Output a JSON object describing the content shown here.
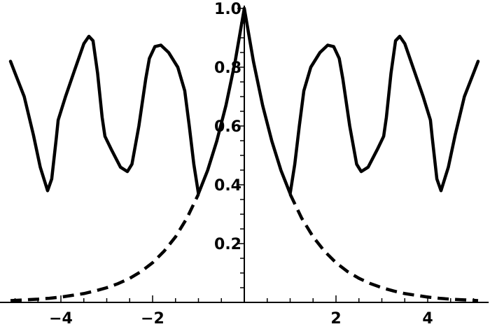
{
  "chart_data": {
    "type": "line",
    "title": "",
    "xlabel": "",
    "ylabel": "",
    "xlim": [
      -5.33,
      5.33
    ],
    "ylim": [
      0,
      1.0
    ],
    "grid": false,
    "x_ticks": [
      {
        "value": -4,
        "label": "−4"
      },
      {
        "value": -2,
        "label": "−2"
      },
      {
        "value": 2,
        "label": "2"
      },
      {
        "value": 4,
        "label": "4"
      }
    ],
    "y_ticks": [
      {
        "value": 0.2,
        "label": "0.2"
      },
      {
        "value": 0.4,
        "label": "0.4"
      },
      {
        "value": 0.6,
        "label": "0.6"
      },
      {
        "value": 0.8,
        "label": "0.8"
      },
      {
        "value": 1.0,
        "label": "1.0"
      }
    ],
    "series": [
      {
        "style": "solid",
        "color": "#000000",
        "x": [
          -5.1,
          -5.0,
          -4.8,
          -4.6,
          -4.45,
          -4.29,
          -4.2,
          -4.1,
          -4.06,
          -3.9,
          -3.7,
          -3.5,
          -3.39,
          -3.3,
          -3.2,
          -3.1,
          -3.04,
          -2.9,
          -2.7,
          -2.55,
          -2.45,
          -2.3,
          -2.15,
          -2.07,
          -1.95,
          -1.82,
          -1.65,
          -1.45,
          -1.3,
          -1.2,
          -1.1,
          -1.0,
          -0.8,
          -0.6,
          -0.4,
          -0.2,
          0,
          0.2,
          0.4,
          0.6,
          0.8,
          1.0,
          1.1,
          1.2,
          1.3,
          1.45,
          1.65,
          1.82,
          1.95,
          2.07,
          2.15,
          2.3,
          2.45,
          2.55,
          2.7,
          2.9,
          3.04,
          3.1,
          3.2,
          3.3,
          3.39,
          3.5,
          3.7,
          3.9,
          4.06,
          4.1,
          4.2,
          4.29,
          4.45,
          4.6,
          4.8,
          5.0,
          5.1
        ],
        "y": [
          0.82,
          0.78,
          0.7,
          0.57,
          0.46,
          0.38,
          0.42,
          0.56,
          0.62,
          0.7,
          0.79,
          0.88,
          0.905,
          0.89,
          0.78,
          0.63,
          0.565,
          0.52,
          0.46,
          0.445,
          0.47,
          0.6,
          0.76,
          0.83,
          0.87,
          0.875,
          0.85,
          0.8,
          0.72,
          0.6,
          0.47,
          0.37,
          0.449,
          0.549,
          0.67,
          0.819,
          1.0,
          0.819,
          0.67,
          0.549,
          0.449,
          0.37,
          0.47,
          0.6,
          0.72,
          0.8,
          0.85,
          0.875,
          0.87,
          0.83,
          0.76,
          0.6,
          0.47,
          0.445,
          0.46,
          0.52,
          0.565,
          0.63,
          0.78,
          0.89,
          0.905,
          0.88,
          0.79,
          0.7,
          0.62,
          0.56,
          0.42,
          0.38,
          0.46,
          0.57,
          0.7,
          0.78,
          0.82
        ]
      },
      {
        "style": "dashed",
        "color": "#000000",
        "segments": [
          {
            "x": [
              -5.1,
              -4.75,
              -4.5,
              -4.25,
              -4.0,
              -3.75,
              -3.5,
              -3.25,
              -3.0,
              -2.75,
              -2.5,
              -2.25,
              -2.0,
              -1.75,
              -1.5,
              -1.25,
              -1.0
            ],
            "y": [
              0.006,
              0.009,
              0.011,
              0.014,
              0.018,
              0.024,
              0.03,
              0.039,
              0.05,
              0.064,
              0.082,
              0.105,
              0.135,
              0.174,
              0.223,
              0.287,
              0.368
            ]
          },
          {
            "x": [
              1.0,
              1.25,
              1.5,
              1.75,
              2.0,
              2.25,
              2.5,
              2.75,
              3.0,
              3.25,
              3.5,
              3.75,
              4.0,
              4.25,
              4.5,
              4.75,
              5.1
            ],
            "y": [
              0.368,
              0.287,
              0.223,
              0.174,
              0.135,
              0.105,
              0.082,
              0.064,
              0.05,
              0.039,
              0.03,
              0.024,
              0.018,
              0.014,
              0.011,
              0.009,
              0.006
            ]
          }
        ]
      }
    ]
  }
}
